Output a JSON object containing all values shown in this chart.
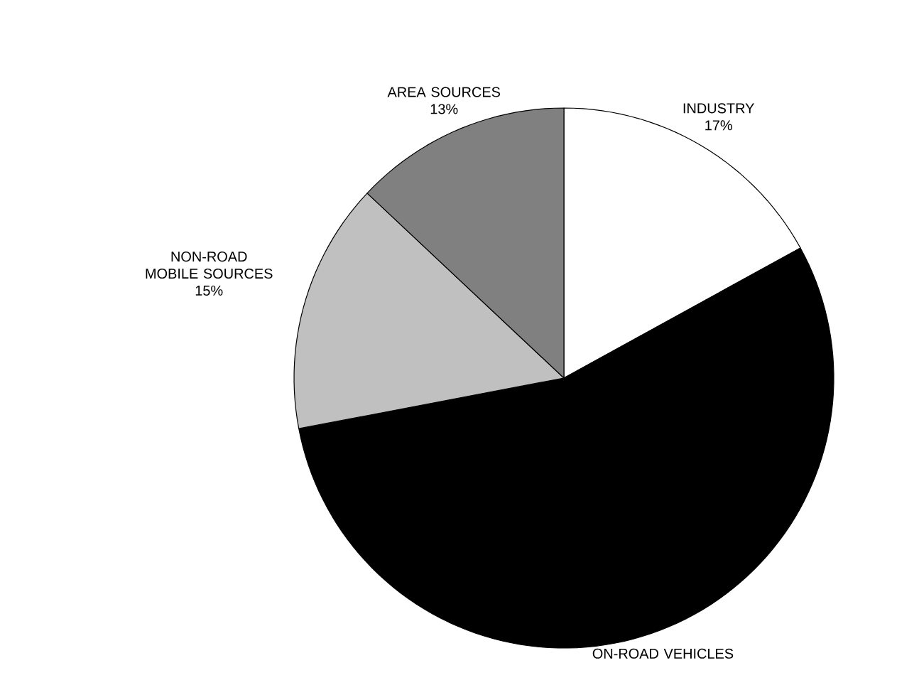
{
  "chart_data": {
    "type": "pie",
    "categories": [
      "INDUSTRY",
      "ON-ROAD VEHICLES",
      "NON-ROAD MOBILE SOURCES",
      "AREA SOURCES"
    ],
    "values": [
      17,
      55,
      15,
      13
    ],
    "colors": [
      "#ffffff",
      "#000000",
      "#c0c0c0",
      "#808080"
    ],
    "value_labels": [
      "17%",
      null,
      "15%",
      "13%"
    ]
  }
}
